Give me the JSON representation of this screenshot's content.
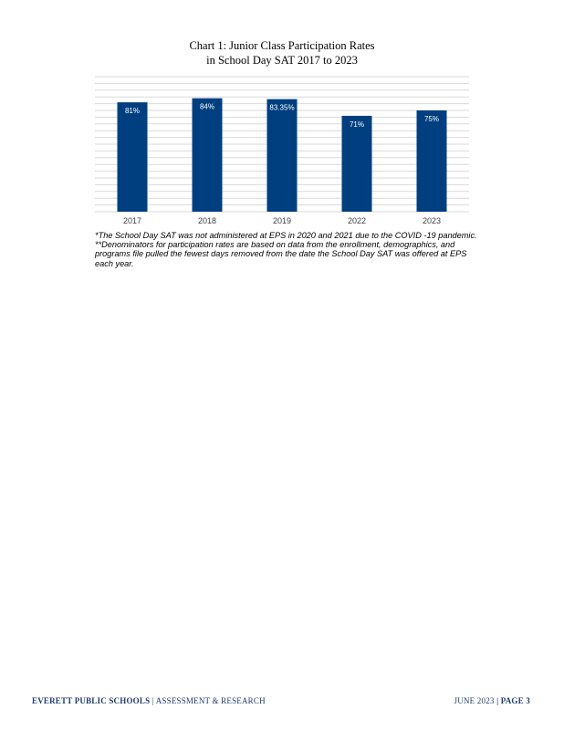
{
  "page": {
    "title_line1": "Chart 1: Junior Class Participation Rates",
    "title_line2": "in School Day SAT 2017 to 2023"
  },
  "notes": {
    "line1": "*The School Day SAT was not administered at EPS in 2020 and 2021 due to the COVID -19 pandemic.",
    "line2": "**Denominators for participation rates are based on data from the enrollment, demographics, and programs file pulled the fewest days removed from the date the School Day SAT was offered at EPS each year."
  },
  "footer": {
    "left_org": "EVERETT PUBLIC SCHOOLS",
    "left_sep": "|",
    "left_dept": "ASSESSMENT & RESEARCH",
    "right_date": "JUNE 2023",
    "right_sep": "|",
    "right_page": "PAGE 3"
  },
  "colors": {
    "bar": "#003f7f",
    "bar_label": "#ffffff",
    "grid": "#d9d9d9",
    "axis_text": "#404040",
    "footer_text": "#1f3b6e"
  },
  "chart_data": {
    "type": "bar",
    "title": "Chart 1: Junior Class Participation Rates in School Day SAT 2017 to 2023",
    "categories": [
      "2017",
      "2018",
      "2019",
      "2022",
      "2023"
    ],
    "values": [
      81,
      84,
      83.35,
      71,
      75
    ],
    "data_labels": [
      "81%",
      "84%",
      "83.35%",
      "71%",
      "75%"
    ],
    "xlabel": "",
    "ylabel": "",
    "ylim": [
      0,
      100
    ],
    "grid": true,
    "legend": "none"
  }
}
